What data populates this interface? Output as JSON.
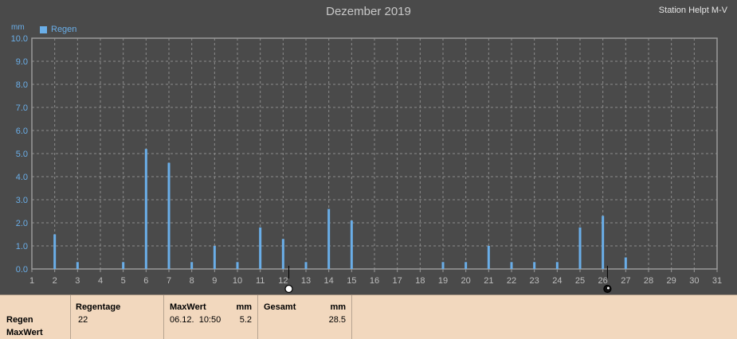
{
  "header": {
    "title": "Dezember 2019",
    "station": "Station Helpt M-V",
    "y_unit": "mm",
    "legend_label": "Regen"
  },
  "colors": {
    "background": "#4a4a4a",
    "bar": "#6aaee8",
    "grid": "#8c8c8c",
    "footer": "#f2d8be"
  },
  "chart_data": {
    "type": "bar",
    "title": "Dezember 2019",
    "ylabel": "mm",
    "xlabel": "",
    "ylim": [
      0,
      10
    ],
    "xlim": [
      1,
      31
    ],
    "grid": true,
    "legend_position": "top-left",
    "y_ticks": [
      "0.0",
      "1.0",
      "2.0",
      "3.0",
      "4.0",
      "5.0",
      "6.0",
      "7.0",
      "8.0",
      "9.0",
      "10.0"
    ],
    "x_ticks": [
      "1",
      "2",
      "3",
      "4",
      "5",
      "6",
      "7",
      "8",
      "9",
      "10",
      "11",
      "12",
      "13",
      "14",
      "15",
      "16",
      "17",
      "18",
      "19",
      "20",
      "21",
      "22",
      "23",
      "24",
      "25",
      "26",
      "27",
      "28",
      "29",
      "30",
      "31"
    ],
    "series": [
      {
        "name": "Regen",
        "points": [
          {
            "x": 2,
            "y": 1.5
          },
          {
            "x": 3,
            "y": 0.3
          },
          {
            "x": 5,
            "y": 0.3
          },
          {
            "x": 6,
            "y": 5.2
          },
          {
            "x": 7,
            "y": 4.6
          },
          {
            "x": 8,
            "y": 0.3
          },
          {
            "x": 9,
            "y": 1.0
          },
          {
            "x": 10,
            "y": 0.3
          },
          {
            "x": 11,
            "y": 1.8
          },
          {
            "x": 12,
            "y": 1.3
          },
          {
            "x": 13,
            "y": 0.3
          },
          {
            "x": 14,
            "y": 2.6
          },
          {
            "x": 15,
            "y": 2.1
          },
          {
            "x": 19,
            "y": 0.3
          },
          {
            "x": 20,
            "y": 0.3
          },
          {
            "x": 21,
            "y": 1.0
          },
          {
            "x": 22,
            "y": 0.3
          },
          {
            "x": 23,
            "y": 0.3
          },
          {
            "x": 24,
            "y": 0.3
          },
          {
            "x": 25,
            "y": 1.8
          },
          {
            "x": 26,
            "y": 2.3
          },
          {
            "x": 27,
            "y": 0.5
          }
        ]
      }
    ],
    "markers": [
      {
        "x": 12.25,
        "symbol": "new-moon-marker"
      },
      {
        "x": 26.2,
        "symbol": "full-moon-marker"
      }
    ]
  },
  "footer": {
    "row_label_1": "Regen",
    "row_label_2": "MaxWert",
    "regentage_header": "Regentage",
    "regentage_value": "22",
    "maxwert_header": "MaxWert",
    "maxwert_unit": "mm",
    "maxwert_datetime": "06.12.  10:50",
    "maxwert_value": "5.2",
    "gesamt_header": "Gesamt",
    "gesamt_unit": "mm",
    "gesamt_value": "28.5"
  }
}
